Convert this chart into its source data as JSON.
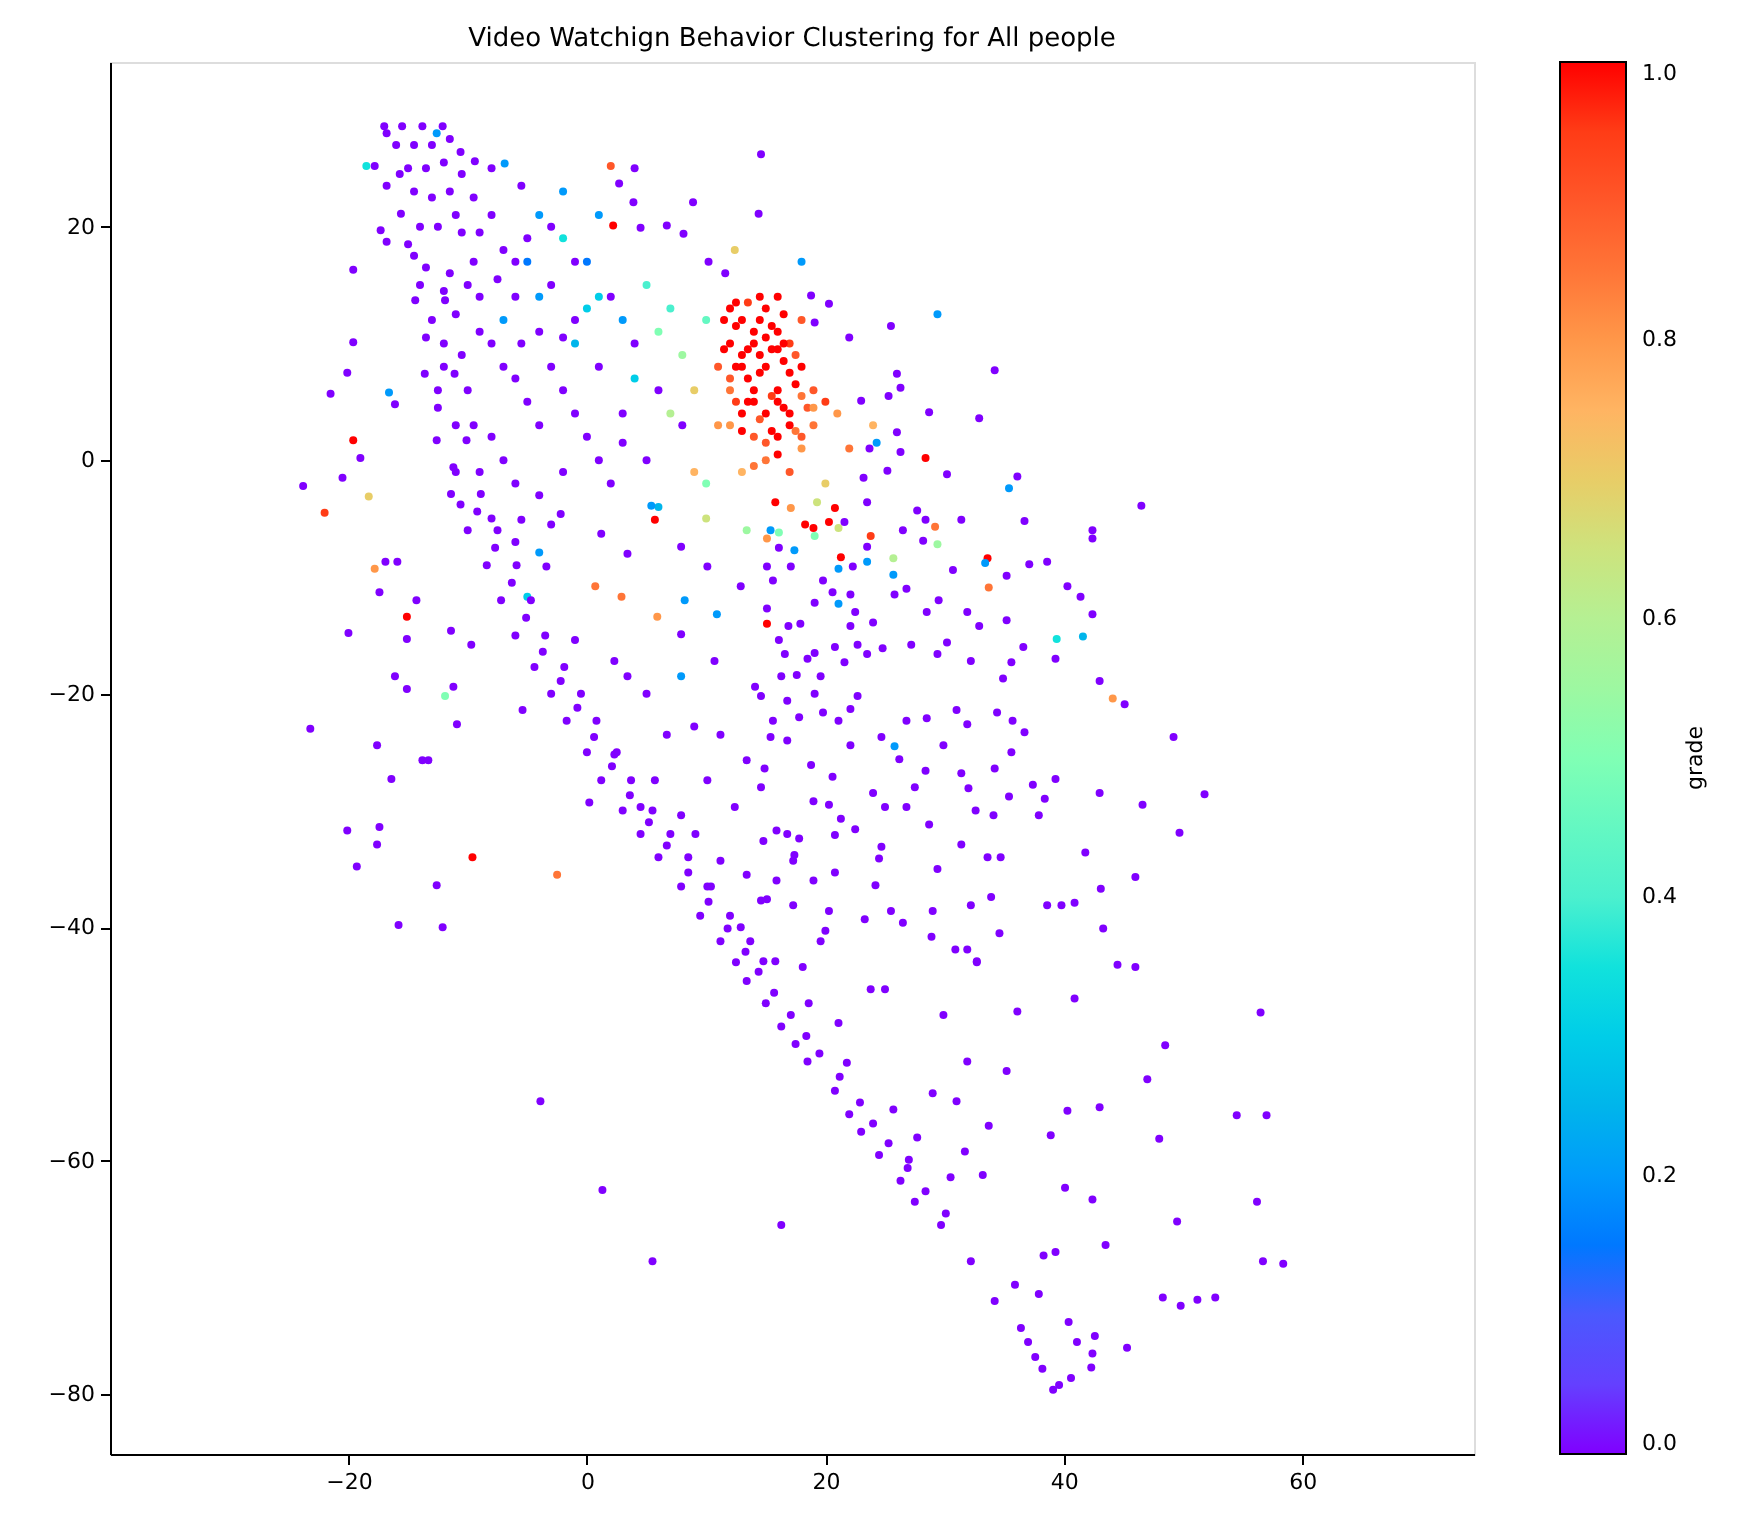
{
  "chart_data": {
    "type": "scatter",
    "title": "Video Watchign Behavior Clustering for All people",
    "marker": "circle",
    "xlim": [
      -40,
      74.4
    ],
    "ylim": [
      -85.1,
      34.1
    ],
    "xticks": [
      -20,
      0,
      20,
      40,
      60
    ],
    "yticks": [
      -80,
      -60,
      -40,
      -20,
      0,
      20
    ],
    "clabel": "grade",
    "clim": [
      0,
      1
    ],
    "cticks": [
      {
        "value": 0,
        "label": "0.0"
      },
      0.2,
      0.4,
      0.6,
      0.8,
      {
        "value": 1,
        "label": "1.0"
      }
    ],
    "x": [
      -17,
      -15.5,
      -13.8,
      -12.1,
      -16.8,
      -16,
      -14.5,
      -13,
      -11.5,
      -15,
      -13.5,
      -12,
      -10.5,
      -14.5,
      -13,
      -11.5,
      -9.5,
      -15.6,
      -14,
      -12.5,
      -10.5,
      -13.5,
      -11.5,
      -9.5,
      -14.4,
      -13,
      -11,
      -13.6,
      -12,
      -12.6,
      -11,
      -11.4,
      -10.6,
      -10,
      -8.4,
      -7.2,
      -6,
      -4.4,
      -3,
      -1.7,
      0,
      1.2,
      3,
      4.5,
      6,
      7.9,
      9.5,
      11.2,
      12.5,
      13.4,
      15,
      16.3,
      17.5,
      18.5,
      20.8,
      22,
      23,
      24.5,
      26.3,
      27.5,
      29.7,
      32.2,
      35.9,
      36.4,
      37,
      37.6,
      38.2,
      39.1,
      39.6,
      40.6,
      40.4,
      41.1,
      42.4,
      42.3,
      42.6,
      37.9,
      34.2,
      45.3,
      -10.6,
      -9.4,
      -12.6,
      -6.9,
      -8,
      -7,
      -5,
      -9,
      -6,
      -3,
      -8,
      -4,
      -1,
      -10,
      -6,
      -2,
      1,
      -8,
      -4,
      0,
      3,
      -6,
      -2,
      2,
      5,
      -3,
      -1,
      2,
      4,
      6,
      8,
      -12,
      -9,
      4,
      2.7,
      3.9,
      8.9,
      14.6,
      14.4,
      6.7,
      4.5,
      8.1,
      10.2,
      11.6,
      2,
      2.2,
      12.4,
      18,
      29.4,
      -4,
      -2,
      0,
      1,
      3,
      -1,
      5,
      1,
      4,
      6,
      7,
      8,
      9,
      10,
      7,
      11,
      10,
      6,
      -5,
      -7,
      5.4,
      5.7,
      -4,
      -5,
      0.7,
      2.9,
      8.2,
      10.9,
      7.9,
      5.9,
      13.4,
      9,
      10,
      12,
      13,
      15,
      16,
      12,
      14,
      17,
      11,
      13,
      15,
      18,
      12,
      14,
      16,
      19,
      13,
      15,
      17,
      19,
      14,
      16,
      18,
      15,
      17,
      13,
      16,
      18,
      20,
      12,
      14,
      21,
      22,
      24,
      20,
      12.5,
      13.5,
      14.5,
      15.5,
      16.5,
      13.5,
      14.5,
      15.5,
      17.5,
      16.5,
      14.5,
      15.5,
      17.5,
      13.5,
      12.5,
      16.5,
      14.5,
      18.5,
      18.8,
      20.3,
      19.1,
      22,
      25.5,
      26,
      26.3,
      34.2,
      28.7,
      32.9,
      23,
      25.3,
      26,
      28.4,
      26.3,
      23.7,
      24.3,
      25.2,
      23.2,
      30.2,
      31.4,
      28.4,
      36.1,
      35.4,
      15.8,
      17.1,
      20.8,
      19.3,
      16.1,
      19,
      20.3,
      21.1,
      18.3,
      19.1,
      15.4,
      15.1,
      21.6,
      23.5,
      26.5,
      28.2,
      16.1,
      23.8,
      29.2,
      27.7,
      29.4,
      25.7,
      25.7,
      33.6,
      33.4,
      33.7,
      46.5,
      36.7,
      42.4,
      42.4,
      38.6,
      37.1,
      40.3,
      41.4,
      39.4,
      41.6,
      42.4,
      39.3,
      43,
      44.1,
      45.1,
      49.2,
      51.8,
      46.6,
      49.7,
      43,
      41.8,
      46,
      43.1,
      40.9,
      39.8,
      38.6,
      43.3,
      44.5,
      35.2,
      35.2,
      36.6,
      35.6,
      34.9,
      32.9,
      31.9,
      30.2,
      32.2,
      29.4,
      27.2,
      29.5,
      28.5,
      26.8,
      25.8,
      30.7,
      31,
      31.9,
      34.4,
      35.7,
      36.7,
      35.6,
      34.2,
      31.4,
      29.9,
      28.5,
      26.8,
      25.8,
      24.7,
      26.2,
      28.4,
      27.5,
      32,
      35.4,
      37.4,
      39.3,
      38.4,
      37.9,
      34.1,
      32.6,
      28.7,
      26.8,
      25,
      31.4,
      33.6,
      34.7,
      29.4,
      33.9,
      32.2,
      29,
      34.6,
      28.9,
      30.9,
      31.9,
      32.7,
      25.5,
      26.5,
      24.7,
      24.5,
      24.2,
      23.3,
      23.8,
      25,
      15.1,
      15.6,
      15.1,
      15.1,
      16.9,
      17.9,
      16.1,
      16.6,
      18.5,
      19.1,
      20.8,
      21.6,
      22.7,
      23.5,
      24.8,
      22.1,
      22.5,
      24,
      21.1,
      19.1,
      20.6,
      22.1,
      19.8,
      21.1,
      22.3,
      23.5,
      21.3,
      23.5,
      17.1,
      17.4,
      16.3,
      17.6,
      19.6,
      19.1,
      14.6,
      17.8,
      15.6,
      15.4,
      19.8,
      21.1,
      22.1,
      22.7,
      22.1,
      14.9,
      18.8,
      20.6,
      19,
      20.3,
      24,
      21.3,
      15.9,
      17.8,
      20.8,
      22.5,
      14.8,
      17.3,
      20.8,
      15.9,
      19,
      15.1,
      17.3,
      20.3,
      20,
      19.6,
      18.1,
      14.8,
      -3.9,
      1.3,
      5.5,
      16.3,
      18.6,
      29.9,
      36.1,
      40.9,
      46,
      56.5,
      48.5,
      47,
      54.5,
      57,
      48,
      43,
      40.3,
      38.9,
      33.7,
      35.2,
      31.9,
      29,
      31,
      31.7,
      33.2,
      30.5,
      40.1,
      42.4,
      56.2,
      49.5,
      43.5,
      38.3,
      39.3,
      56.7,
      58.4,
      48.3,
      49.8,
      51.2,
      52.7,
      32.7,
      21.1,
      21.8,
      25.7,
      27.7,
      27,
      -18.5,
      -17.8,
      -16.8,
      -19.6,
      -17.3,
      -16.8,
      -19.6,
      -20.1,
      -21.5,
      -16.6,
      -16.1,
      -19.6,
      -19,
      -20.5,
      -23.8,
      -18.3,
      -22,
      -17.8,
      -16.9,
      -15.9,
      -17.4,
      -14.3,
      -15.1,
      -20,
      -15.1,
      -11.4,
      -9.7,
      -16.1,
      -15.1,
      -11.2,
      -11.9,
      -10.9,
      -23.2,
      -17.6,
      -13.8,
      -13.3,
      -16.4,
      -20.1,
      -17.4,
      -17.6,
      -19.3,
      -9.6,
      -12.6,
      -2.5,
      -15.8,
      -12.1,
      0.2,
      -5.4,
      -3.4,
      -1,
      2.3,
      3.4,
      5,
      6.7,
      9,
      11.2,
      10.1,
      13.4,
      14.6,
      12.4,
      9.1,
      11.2,
      13.4,
      10.1,
      14.6,
      12.9,
      15.8,
      7.9,
      10.7,
      14.1,
      16.8,
      1.2,
      3.4,
      7.9,
      10.1,
      12.9,
      -2.2,
      -5.5,
      5.7,
      2.3,
      4.5,
      7.9,
      16.8,
      16.8,
      17.4,
      -15.7,
      -14.5,
      -13.5,
      -12.5,
      -11.2,
      -9.2,
      -7.7,
      -6.3,
      -5.1,
      -3.7,
      -2.2,
      -0.8,
      0.6,
      2.1,
      3.6,
      5.2,
      6.7,
      8.5,
      10.2,
      11.8,
      13.3,
      14.4,
      15.7,
      17.1,
      18.4,
      19.5,
      21.2,
      22.9,
      24,
      25.3,
      26.9,
      28.4,
      30.1,
      -11.9,
      -11.1,
      -10.1,
      -8.9,
      -7.5,
      -5.9,
      -4.7,
      -3.5,
      -1.9,
      -0.5,
      0.8,
      2.5,
      3.7,
      5.5,
      7,
      8.5,
      10.4,
      12,
      13.7,
      11.5,
      12.5,
      13.5,
      15.5,
      16.5,
      17.5,
      11.5,
      13,
      15,
      17,
      12,
      14,
      16,
      18,
      13,
      15,
      17,
      19,
      14,
      16,
      18,
      14.5,
      16,
      12.5,
      -15,
      -14,
      -12,
      -10,
      -12.5,
      -10.5,
      -9,
      -7,
      -5,
      -3,
      -1,
      -7,
      -4,
      -9.5,
      -11,
      -8,
      -6,
      1,
      3,
      -2,
      0,
      -4,
      -6,
      -2,
      -5.5,
      -8,
      -11,
      -9,
      -7.5,
      -5.5,
      -3
    ],
    "values": [
      28.6,
      28.6,
      28.6,
      28.6,
      28,
      27,
      27,
      27,
      27.5,
      25,
      25,
      25.5,
      24.5,
      23,
      22.5,
      23,
      22.5,
      21.1,
      20,
      20,
      19.5,
      16.5,
      16,
      17,
      13.7,
      12,
      12.5,
      7.4,
      8,
      1.7,
      3,
      -2.9,
      -3.8,
      -6,
      -9,
      -12,
      -15,
      -17.7,
      -20,
      -22.3,
      -25,
      -27.4,
      -30,
      -32,
      -34,
      -36.5,
      -39,
      -41.2,
      -43,
      -44.6,
      -46.5,
      -48.5,
      -50,
      -51.5,
      -54,
      -56,
      -57.5,
      -59.5,
      -61.7,
      -63.5,
      -65.5,
      -68.6,
      -70.6,
      -74.3,
      -75.5,
      -76.8,
      -77.8,
      -79.6,
      -79.2,
      -78.6,
      -73.8,
      -75.5,
      -76.5,
      -77.7,
      -75,
      -71.4,
      -72,
      -76,
      26.4,
      25.6,
      28,
      25.4,
      21,
      18,
      19,
      14,
      14,
      15,
      10,
      11,
      12,
      6,
      7,
      6,
      8,
      2,
      3,
      2,
      4,
      -2,
      -1,
      -2,
      0,
      20,
      17,
      14,
      10,
      6,
      3,
      10,
      -1,
      25,
      23.7,
      22.1,
      22.1,
      26.2,
      21.1,
      20.1,
      19.9,
      19.4,
      17,
      16,
      25.2,
      20.1,
      18,
      17,
      12.5,
      21,
      19,
      17,
      14,
      12,
      10,
      15,
      21,
      7,
      11,
      13,
      9,
      6,
      12,
      4,
      3,
      -2,
      -4,
      17,
      12,
      -3.9,
      -5.1,
      -7.9,
      -11.7,
      -10.8,
      -11.7,
      -12,
      -13.2,
      -18.5,
      -13.4,
      -6,
      -1,
      -5,
      13,
      12,
      13,
      11,
      10,
      10,
      10,
      8,
      8,
      8,
      8,
      6,
      6,
      6,
      6,
      4,
      4,
      4,
      3,
      2,
      2,
      1,
      0,
      -1,
      -1,
      14,
      12,
      5,
      3,
      11,
      4,
      1,
      3,
      -2,
      11.5,
      9.5,
      12,
      9.5,
      8.5,
      7,
      7.5,
      5.5,
      6.5,
      4.5,
      3.5,
      2.5,
      2.5,
      5,
      8,
      12.5,
      14,
      4.5,
      14.1,
      13.4,
      11.8,
      10.5,
      11.5,
      7.4,
      6.2,
      7.7,
      4.1,
      3.6,
      5.1,
      5.5,
      2.4,
      0.2,
      0.7,
      1,
      1.5,
      -0.9,
      -1.5,
      -1.2,
      -5.1,
      -5.1,
      -1.4,
      -2.4,
      -3.6,
      -4.1,
      -4.1,
      -3.6,
      -6.2,
      -5.8,
      -5.3,
      -5.8,
      -5.5,
      -6.5,
      -6,
      -6.7,
      -5.3,
      -3.6,
      -6,
      -6.9,
      -7.5,
      -6.5,
      -5.7,
      -4.3,
      -7.2,
      -8.4,
      -9.8,
      -8.4,
      -8.8,
      -10.9,
      -3.9,
      -5.2,
      -6,
      -6.7,
      -8.7,
      -8.9,
      -10.8,
      -11.7,
      -15.3,
      -15.1,
      -13.2,
      -17,
      -18.9,
      -20.4,
      -20.9,
      -23.7,
      -28.6,
      -29.5,
      -31.9,
      -28.5,
      -33.6,
      -35.7,
      -36.7,
      -37.9,
      -38.1,
      -38.1,
      -40.1,
      -43.2,
      -9.9,
      -13.7,
      -16,
      -17.3,
      -18.7,
      -14.2,
      -13,
      -15.6,
      -17.2,
      -16.6,
      -15.8,
      -12,
      -13,
      -11,
      -11.5,
      -9.4,
      -21.4,
      -22.6,
      -21.6,
      -22.3,
      -23.3,
      -25,
      -26.4,
      -26.8,
      -24.4,
      -22.1,
      -22.3,
      -24.5,
      -23.7,
      -25.6,
      -26.6,
      -28,
      -28.1,
      -28.8,
      -27.8,
      -27.3,
      -29,
      -30.4,
      -30.4,
      -30,
      -31.2,
      -29.7,
      -29.7,
      -32.9,
      -34,
      -34,
      -35,
      -37.4,
      -38.1,
      -38.6,
      -40.5,
      -40.8,
      -41.9,
      -41.9,
      -42.9,
      -38.6,
      -39.6,
      -33.1,
      -34.1,
      -36.4,
      -39.3,
      -45.3,
      -45.3,
      -9.1,
      -10.3,
      -12.7,
      -14,
      -14.2,
      -14,
      -15.4,
      -16.6,
      -17,
      -16.5,
      -16,
      -17.3,
      -15.8,
      -16.6,
      -16.1,
      -14.2,
      -13,
      -13.9,
      -12.3,
      -12.2,
      -11.3,
      -11.5,
      -10.3,
      -9.3,
      -9.1,
      -8.7,
      -8.3,
      -7.4,
      -9.1,
      -7.7,
      -18.5,
      -18.4,
      -18.5,
      -20,
      -20.2,
      -22,
      -22.3,
      -23.7,
      -21.6,
      -22.3,
      -21.3,
      -20.2,
      -24.4,
      -26.4,
      -26.1,
      -27.1,
      -29.2,
      -29.5,
      -28.5,
      -30.7,
      -31.7,
      -32.4,
      -32.1,
      -31.6,
      -32.6,
      -34.3,
      -35.3,
      -36,
      -36,
      -37.6,
      -38.1,
      -38.6,
      -40.3,
      -41.2,
      -43.4,
      -42.9,
      -54.9,
      -62.5,
      -68.6,
      -65.5,
      -46.5,
      -47.5,
      -47.2,
      -46.1,
      -43.4,
      -47.3,
      -50.1,
      -53,
      -56.1,
      -56.1,
      -58.1,
      -55.4,
      -55.7,
      -57.8,
      -57,
      -52.3,
      -51.5,
      -54.2,
      -54.9,
      -59.2,
      -61.2,
      -61.4,
      -62.3,
      -63.3,
      -63.5,
      -65.2,
      -67.2,
      -68.1,
      -67.8,
      -68.6,
      -68.8,
      -71.7,
      -72.4,
      -71.9,
      -71.7,
      -43,
      -48.2,
      -51.6,
      -55.6,
      -58,
      -59.9,
      25.2,
      25.2,
      23.5,
      16.3,
      19.7,
      18.7,
      10.1,
      7.5,
      5.7,
      5.8,
      4.8,
      1.7,
      0.2,
      -1.5,
      -2.2,
      -3.1,
      -4.5,
      -9.3,
      -8.7,
      -8.7,
      -11.3,
      -12,
      -13.4,
      -14.8,
      -15.3,
      -14.6,
      -15.8,
      -18.5,
      -19.6,
      -19.4,
      -20.2,
      -22.6,
      -23,
      -24.4,
      -25.7,
      -25.7,
      -27.3,
      -31.7,
      -31.4,
      -32.9,
      -34.8,
      -34,
      -36.4,
      -35.5,
      -39.8,
      -40,
      -29.3,
      -21.4,
      -9.1,
      -15.4,
      -17.2,
      -18.5,
      -20,
      -23.5,
      -22.8,
      -23.5,
      -27.4,
      -25.7,
      -28,
      -29.7,
      -32,
      -34.3,
      -35.5,
      -36.5,
      -37.7,
      -40,
      -42.9,
      -14.9,
      -17.2,
      -19.4,
      -20.6,
      -6.3,
      -8,
      -7.4,
      -9.1,
      -10.8,
      -4.6,
      -5.1,
      -27.4,
      -25.2,
      -29.7,
      -30.4,
      -24,
      -32,
      -33.8,
      24.5,
      17.5,
      10.5,
      4.5,
      -0.6,
      -4.4,
      -7.5,
      -10.5,
      -13.5,
      -16.4,
      -18.9,
      -21.2,
      -23.7,
      -26.2,
      -28.7,
      -31,
      -33,
      -35.3,
      -37.8,
      -40.1,
      -42.1,
      -43.8,
      -45.6,
      -47.5,
      -49.3,
      -50.8,
      -52.8,
      -55,
      -56.8,
      -58.5,
      -60.6,
      -62.6,
      -64.5,
      13.7,
      7.4,
      1.7,
      -2.9,
      -6,
      -9,
      -12,
      -15,
      -17.7,
      -20,
      -22.3,
      -25,
      -27.4,
      -30,
      -32,
      -34,
      -36.5,
      -39,
      -41.2,
      12,
      13.5,
      13.5,
      11.5,
      10,
      9,
      9.5,
      9,
      10.5,
      7.5,
      7,
      5,
      5,
      5.5,
      2.5,
      1.5,
      3,
      4.5,
      -0.5,
      0.5,
      2,
      9,
      9.5,
      5,
      18.5,
      15,
      14.5,
      15,
      6,
      9,
      11,
      8,
      5,
      8,
      4,
      0,
      -3,
      3,
      -1,
      -5,
      -7,
      0,
      1.5,
      10.5,
      13,
      14,
      17,
      23,
      23.5,
      25,
      21,
      19.5,
      15.5,
      10,
      -5.5
    ],
    "cvalues": [
      0,
      0,
      0,
      0,
      0,
      0,
      0,
      0,
      0,
      0,
      0,
      0,
      0,
      0,
      0,
      0,
      0,
      0,
      0,
      0,
      0,
      0,
      0,
      0,
      0,
      0,
      0,
      0,
      0,
      0,
      0,
      0,
      0,
      0,
      0,
      0,
      0,
      0,
      0,
      0,
      0,
      0,
      0,
      0,
      0,
      0,
      0,
      0,
      0,
      0,
      0,
      0,
      0,
      0,
      0,
      0,
      0,
      0,
      0,
      0,
      0,
      0,
      0,
      0,
      0,
      0,
      0,
      0,
      0,
      0,
      0,
      0,
      0,
      0,
      0,
      0,
      0,
      0,
      0,
      0,
      0.2,
      0.2,
      0,
      0,
      0,
      0,
      0,
      0,
      0,
      0,
      0,
      0,
      0,
      0,
      0,
      0,
      0,
      0,
      0,
      0,
      0,
      0,
      0,
      0,
      0,
      0,
      0,
      0,
      0,
      0,
      0,
      0,
      0,
      0,
      0,
      0,
      0,
      0,
      0,
      0,
      0,
      0,
      0.9,
      1,
      0.7,
      0.2,
      0.2,
      0.2,
      0.35,
      0.15,
      0.3,
      0.2,
      0.25,
      0.4,
      0.2,
      0.3,
      0.5,
      0.4,
      0.55,
      0.7,
      0.45,
      0.6,
      0.8,
      0.5,
      0.25,
      0.15,
      0.2,
      0.2,
      1,
      0.2,
      0.3,
      0.85,
      0.85,
      0.2,
      0.2,
      0.2,
      0.8,
      0.55,
      0.75,
      0.65,
      1,
      1,
      1,
      1,
      1,
      1,
      0.95,
      0.9,
      1,
      1,
      1,
      0.85,
      1,
      1,
      0.9,
      1,
      1,
      1,
      0.85,
      0.9,
      1,
      0.8,
      0.85,
      0.9,
      0.75,
      1,
      0.9,
      0.95,
      0.8,
      1,
      0.8,
      0.85,
      0.75,
      0.7,
      1,
      1,
      1,
      1,
      1,
      1,
      1,
      0.95,
      1,
      1,
      0.9,
      1,
      0.85,
      1,
      1,
      1,
      1,
      0.9,
      0,
      0,
      0,
      0,
      0,
      0,
      0,
      0,
      0,
      0,
      0,
      0,
      0,
      1,
      0,
      0,
      0.2,
      0,
      0,
      0,
      0,
      0,
      0,
      0.2,
      1,
      0.8,
      1,
      0.65,
      0.5,
      1,
      1,
      0.65,
      1,
      0.5,
      0.2,
      0.8,
      0,
      0,
      0,
      0,
      0,
      0.95,
      0.85,
      0,
      0.55,
      0.6,
      0.2,
      1,
      0.2,
      0.85,
      0,
      0,
      0,
      0,
      0,
      0,
      0,
      0,
      0.35,
      0.25,
      0,
      0,
      0,
      0.8,
      0,
      0,
      0,
      0,
      0,
      0,
      0,
      0,
      0,
      0,
      0,
      0,
      0,
      0,
      0,
      0,
      0,
      0,
      0,
      0,
      0,
      0,
      0,
      0,
      0,
      0,
      0,
      0,
      0,
      0,
      0,
      0,
      0,
      0,
      0,
      0,
      0,
      0,
      0,
      0,
      0,
      0.2,
      0,
      0,
      0,
      0,
      0,
      0,
      0,
      0,
      0,
      0,
      0,
      0,
      0,
      0,
      0,
      0,
      0,
      0,
      0,
      0,
      0,
      0,
      0,
      0,
      0,
      0,
      0,
      0,
      0,
      0,
      0,
      0,
      0,
      0,
      0,
      0,
      0,
      0,
      1,
      0,
      0,
      0,
      0,
      0,
      0,
      0,
      0,
      0,
      0,
      0,
      0,
      0,
      0,
      0.2,
      0,
      0,
      0,
      0,
      0.2,
      0,
      0.2,
      1,
      0,
      0,
      0.2,
      0,
      0,
      0,
      0,
      0,
      0,
      0,
      0,
      0,
      0,
      0,
      0,
      0,
      0,
      0,
      0,
      0,
      0,
      0,
      0,
      0,
      0,
      0,
      0,
      0,
      0,
      0,
      0,
      0,
      0,
      0,
      0,
      0,
      0,
      0,
      0,
      0,
      0,
      0,
      0,
      0,
      0,
      0,
      0,
      0,
      0,
      0,
      0,
      0,
      0,
      0,
      0,
      0,
      0,
      0,
      0,
      0,
      0,
      0,
      0,
      0,
      0,
      0,
      0,
      0,
      0,
      0,
      0,
      0,
      0,
      0,
      0,
      0,
      0,
      0,
      0,
      0,
      0,
      0,
      0,
      0,
      0.35,
      0,
      0,
      0,
      0,
      0,
      0,
      0,
      0,
      0.2,
      0,
      1,
      0,
      0,
      0,
      0.7,
      0.95,
      0.8,
      0,
      0,
      0,
      0,
      1,
      0,
      0,
      0,
      0,
      0,
      0,
      0,
      0.5,
      0,
      0,
      0,
      0,
      0,
      0,
      0,
      0,
      0,
      0,
      1,
      0,
      0.85,
      0,
      0,
      0,
      0,
      0,
      0,
      0,
      0,
      0,
      0,
      0,
      0,
      0,
      0,
      0,
      0,
      0,
      0,
      0,
      0,
      0,
      0,
      0,
      0,
      0,
      0,
      0,
      0,
      0,
      0,
      0,
      0,
      0,
      0,
      0,
      0,
      0,
      0,
      0,
      0,
      0,
      0,
      0,
      0,
      0,
      0,
      0,
      0,
      0,
      0,
      0,
      0,
      0,
      0,
      0,
      0,
      0,
      0,
      0,
      0,
      0,
      0,
      0,
      0,
      0,
      0,
      0,
      0,
      0,
      0,
      0,
      0,
      0,
      0,
      0,
      0,
      0,
      0,
      0,
      0,
      0,
      0,
      0,
      0,
      0,
      0,
      0,
      0,
      0,
      0,
      0,
      0,
      0,
      1,
      1,
      0.95,
      1,
      1,
      0.9,
      1,
      1,
      1,
      1,
      0.9,
      1,
      1,
      0.85,
      1,
      0.9,
      1,
      0.8,
      0.85,
      1,
      0.9,
      1,
      1,
      0.95,
      0,
      0,
      0,
      0,
      0,
      0,
      0,
      0,
      0,
      0,
      0,
      0,
      0,
      0,
      0,
      0,
      0,
      0,
      0,
      0,
      0.3,
      0.2,
      0,
      0.2,
      0,
      0,
      0,
      0,
      0,
      0,
      0
    ]
  }
}
